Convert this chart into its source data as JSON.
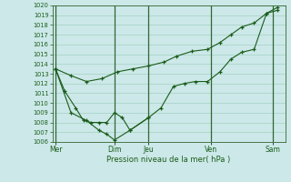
{
  "xlabel": "Pression niveau de la mer( hPa )",
  "background_color": "#cce8e8",
  "grid_color": "#99ccbb",
  "line_color": "#1a5c1a",
  "vline_color": "#336633",
  "ylim": [
    1006,
    1020
  ],
  "yticks": [
    1006,
    1007,
    1008,
    1009,
    1010,
    1011,
    1012,
    1013,
    1014,
    1015,
    1016,
    1017,
    1018,
    1019,
    1020
  ],
  "xlim": [
    0,
    15
  ],
  "day_labels": [
    "Mer",
    "Dim",
    "Jeu",
    "Ven",
    "Sam"
  ],
  "day_positions": [
    0.2,
    4.0,
    6.2,
    10.2,
    14.2
  ],
  "vline_positions": [
    0.2,
    4.0,
    6.2,
    10.2,
    14.2
  ],
  "line1_x": [
    0.2,
    1.2,
    2.2,
    3.2,
    4.2,
    5.2,
    6.2,
    7.2,
    8.0,
    9.0,
    10.0,
    10.8,
    11.5,
    12.2,
    13.0,
    13.8,
    14.5
  ],
  "line1_y": [
    1013.5,
    1012.8,
    1012.2,
    1012.5,
    1013.2,
    1013.5,
    1013.8,
    1014.2,
    1014.8,
    1015.3,
    1015.5,
    1016.2,
    1017.0,
    1017.8,
    1018.2,
    1019.2,
    1019.8
  ],
  "line2_x": [
    0.2,
    0.8,
    1.5,
    2.0,
    2.5,
    3.0,
    3.5,
    4.0,
    4.5,
    5.0,
    6.2,
    7.0,
    7.8,
    8.5,
    9.2,
    10.0,
    10.8,
    11.5,
    12.2,
    13.0,
    13.8,
    14.5
  ],
  "line2_y": [
    1013.5,
    1011.2,
    1009.5,
    1008.2,
    1008.0,
    1008.0,
    1008.0,
    1009.0,
    1008.5,
    1007.2,
    1008.5,
    1009.5,
    1011.7,
    1012.0,
    1012.2,
    1012.2,
    1013.2,
    1014.5,
    1015.2,
    1015.5,
    1019.2,
    1019.5
  ],
  "line2b_x": [
    0.2,
    1.2,
    2.2,
    3.0,
    3.5,
    4.0,
    5.0,
    6.2
  ],
  "line2b_y": [
    1013.5,
    1009.0,
    1008.2,
    1007.2,
    1006.8,
    1006.2,
    1007.2,
    1008.5
  ]
}
